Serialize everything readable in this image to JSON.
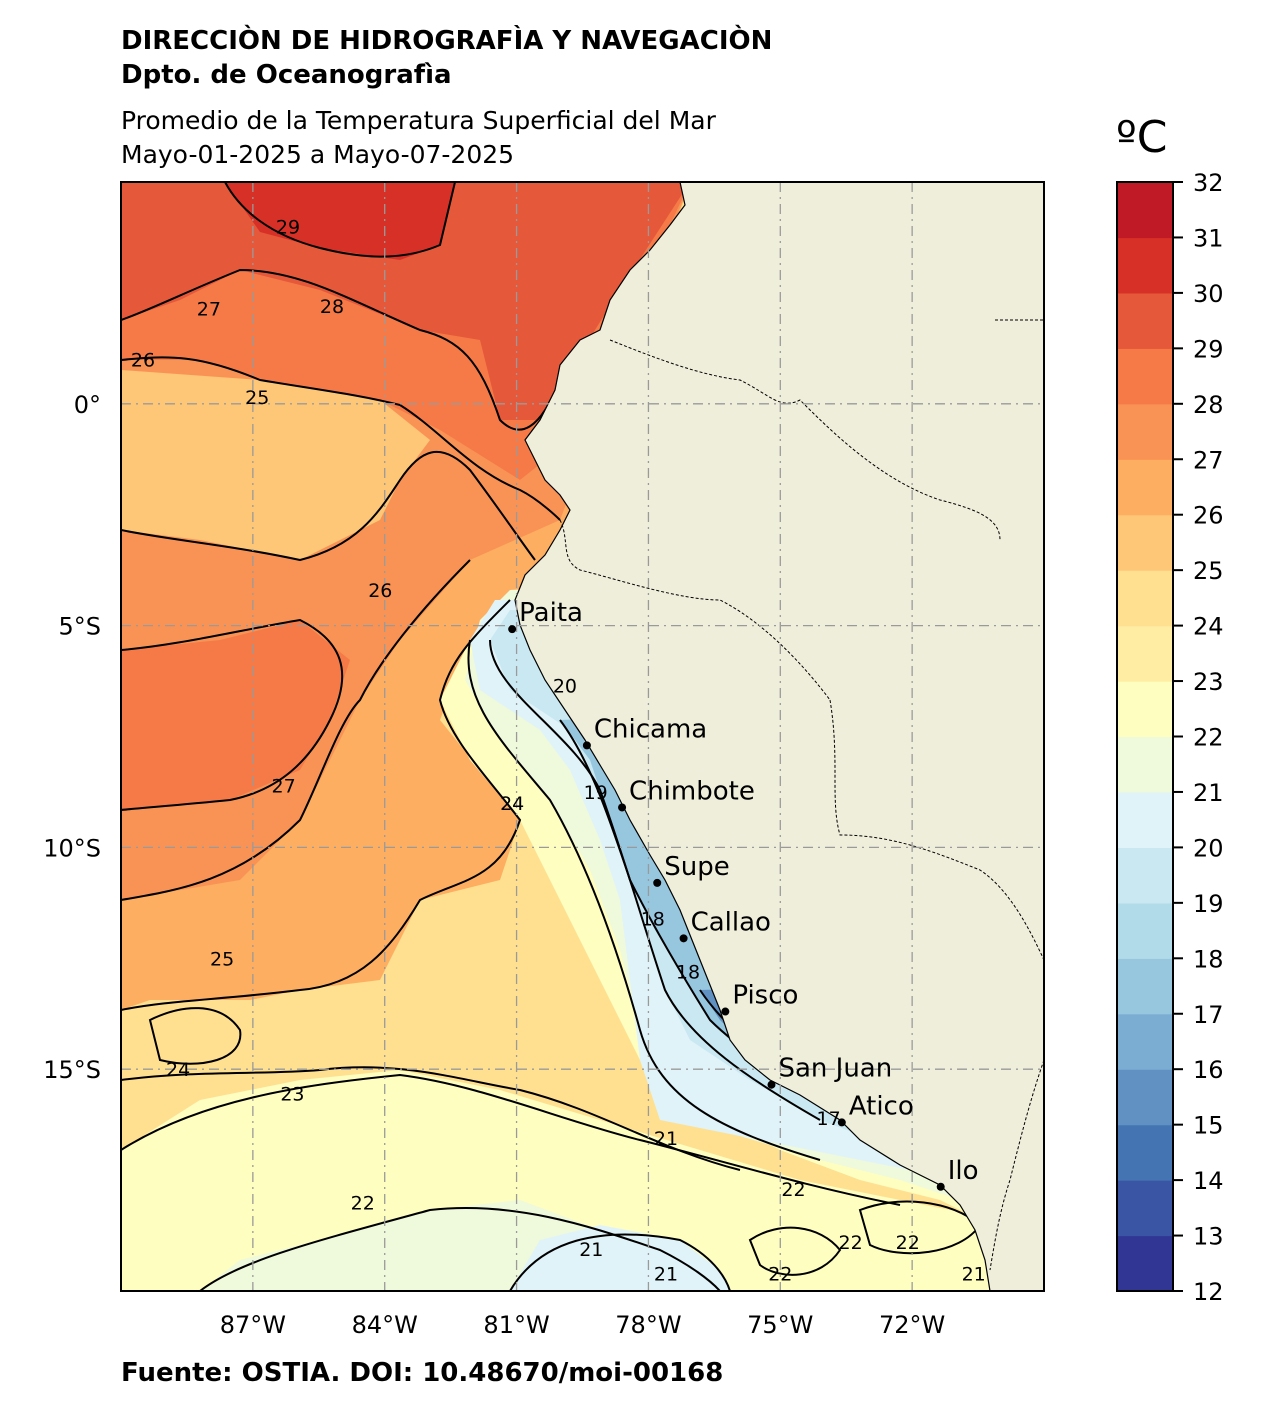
{
  "header": {
    "institution": "DIRECCIÒN DE HIDROGRAFÌA Y NAVEGACIÒN",
    "department": "Dpto. de Oceanografìa",
    "title": "Promedio de la Temperatura Superficial del Mar",
    "date_range": "Mayo-01-2025 a Mayo-07-2025"
  },
  "footer": {
    "source": "Fuente: OSTIA. DOI: 10.48670/moi-00168"
  },
  "map": {
    "extent": {
      "lon_min": -90,
      "lon_max": -69,
      "lat_min": -20,
      "lat_max": 5
    },
    "lon_ticks": [
      {
        "value": -87,
        "label": "87°W"
      },
      {
        "value": -84,
        "label": "84°W"
      },
      {
        "value": -81,
        "label": "81°W"
      },
      {
        "value": -78,
        "label": "78°W"
      },
      {
        "value": -75,
        "label": "75°W"
      },
      {
        "value": -72,
        "label": "72°W"
      }
    ],
    "lat_ticks": [
      {
        "value": 0,
        "label": "0°"
      },
      {
        "value": -5,
        "label": "5°S"
      },
      {
        "value": -10,
        "label": "10°S"
      },
      {
        "value": -15,
        "label": "15°S"
      }
    ],
    "gridlines": true,
    "land_color": "#efeedb",
    "cities": [
      {
        "name": "Paita",
        "lon": -81.1,
        "lat": -5.08
      },
      {
        "name": "Chicama",
        "lon": -79.4,
        "lat": -7.7
      },
      {
        "name": "Chimbote",
        "lon": -78.6,
        "lat": -9.1
      },
      {
        "name": "Supe",
        "lon": -77.8,
        "lat": -10.8
      },
      {
        "name": "Callao",
        "lon": -77.2,
        "lat": -12.05
      },
      {
        "name": "Pisco",
        "lon": -76.25,
        "lat": -13.7
      },
      {
        "name": "San Juan",
        "lon": -75.2,
        "lat": -15.35
      },
      {
        "name": "Atico",
        "lon": -73.6,
        "lat": -16.2
      },
      {
        "name": "Ilo",
        "lon": -71.35,
        "lat": -17.65
      }
    ],
    "contour_labels": [
      {
        "text": "29",
        "lon": -86.2,
        "lat": 4.0
      },
      {
        "text": "28",
        "lon": -85.2,
        "lat": 2.2
      },
      {
        "text": "27",
        "lon": -88.0,
        "lat": 2.15
      },
      {
        "text": "26",
        "lon": -89.5,
        "lat": 1.0
      },
      {
        "text": "25",
        "lon": -86.9,
        "lat": 0.15
      },
      {
        "text": "26",
        "lon": -84.1,
        "lat": -4.2
      },
      {
        "text": "27",
        "lon": -86.3,
        "lat": -8.6
      },
      {
        "text": "24",
        "lon": -81.1,
        "lat": -9.0
      },
      {
        "text": "25",
        "lon": -87.7,
        "lat": -12.5
      },
      {
        "text": "24",
        "lon": -88.7,
        "lat": -15.0
      },
      {
        "text": "23",
        "lon": -86.1,
        "lat": -15.55
      },
      {
        "text": "22",
        "lon": -84.5,
        "lat": -18.0
      },
      {
        "text": "21",
        "lon": -79.3,
        "lat": -19.05
      },
      {
        "text": "21",
        "lon": -77.6,
        "lat": -19.6
      },
      {
        "text": "21",
        "lon": -77.6,
        "lat": -16.55
      },
      {
        "text": "22",
        "lon": -75.0,
        "lat": -19.6
      },
      {
        "text": "22",
        "lon": -73.4,
        "lat": -18.9
      },
      {
        "text": "22",
        "lon": -72.1,
        "lat": -18.9
      },
      {
        "text": "20",
        "lon": -79.9,
        "lat": -6.35
      },
      {
        "text": "19",
        "lon": -79.2,
        "lat": -8.75
      },
      {
        "text": "18",
        "lon": -77.9,
        "lat": -11.6
      },
      {
        "text": "18",
        "lon": -77.1,
        "lat": -12.8
      },
      {
        "text": "17",
        "lon": -73.9,
        "lat": -16.1
      },
      {
        "text": "22",
        "lon": -74.7,
        "lat": -17.7
      },
      {
        "text": "21",
        "lon": -70.6,
        "lat": -19.6
      }
    ]
  },
  "colorbar": {
    "unit": "ºC",
    "min": 12,
    "max": 32,
    "ticks": [
      "12",
      "13",
      "14",
      "15",
      "16",
      "17",
      "18",
      "19",
      "20",
      "21",
      "22",
      "23",
      "24",
      "25",
      "26",
      "27",
      "28",
      "29",
      "30",
      "31",
      "32"
    ],
    "colors": [
      "#313695",
      "#3a55a3",
      "#4574b3",
      "#6091c2",
      "#7bacd1",
      "#97c6df",
      "#b2dbe9",
      "#cae8f2",
      "#e0f3f8",
      "#eff9db",
      "#fefec0",
      "#feeda2",
      "#fee090",
      "#fdc777",
      "#fdae61",
      "#f99355",
      "#f57a47",
      "#e6583a",
      "#d73027",
      "#c11a27",
      "#a50026"
    ]
  }
}
